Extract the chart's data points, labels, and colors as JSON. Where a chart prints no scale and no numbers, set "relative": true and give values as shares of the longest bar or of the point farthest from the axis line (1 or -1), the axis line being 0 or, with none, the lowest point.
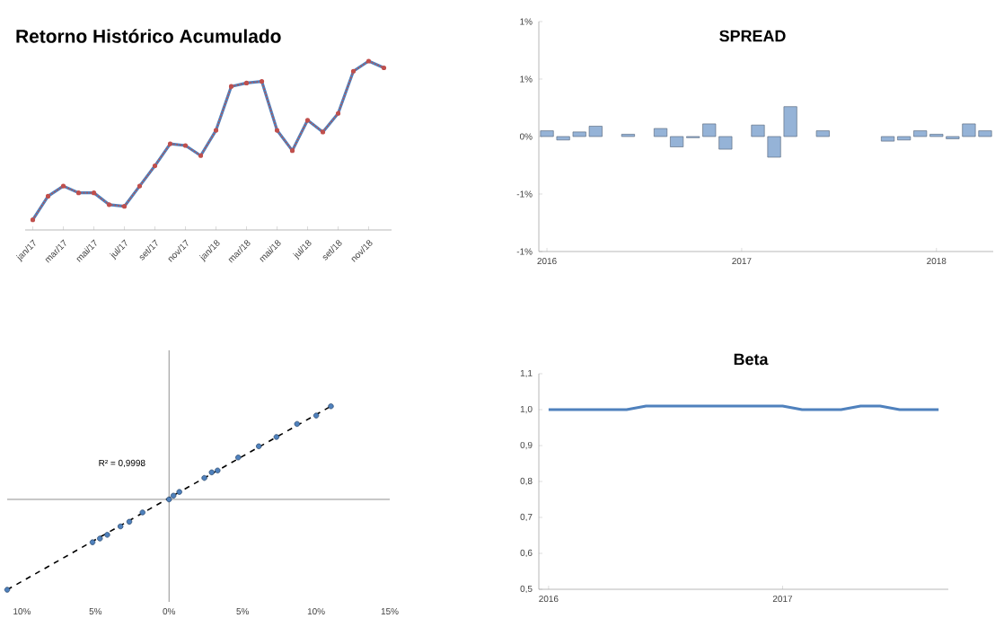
{
  "chart_data": [
    {
      "type": "line",
      "title": "Retorno Histórico Acumulado",
      "relative": true,
      "categories": [
        "jan/17",
        null,
        "mar/17",
        null,
        "mai/17",
        null,
        "jul/17",
        null,
        "set/17",
        null,
        "nov/17",
        null,
        "jan/18",
        null,
        "mar/18",
        null,
        "mai/18",
        null,
        "jul/18",
        null,
        "set/18",
        null,
        "nov/18",
        null
      ],
      "series": [
        {
          "color": "#4f81bd",
          "line_style": "solid",
          "marker": "none",
          "values": [
            0.06,
            0.2,
            0.26,
            0.22,
            0.22,
            0.15,
            0.14,
            0.26,
            0.38,
            0.51,
            0.5,
            0.44,
            0.59,
            0.85,
            0.87,
            0.88,
            0.59,
            0.47,
            0.65,
            0.58,
            0.69,
            0.94,
            1,
            0.96
          ]
        },
        {
          "color": "#c0504d",
          "line_style": "dotted",
          "marker": "circle",
          "values": [
            0.06,
            0.2,
            0.26,
            0.22,
            0.22,
            0.15,
            0.14,
            0.26,
            0.38,
            0.51,
            0.5,
            0.44,
            0.59,
            0.85,
            0.87,
            0.88,
            0.59,
            0.47,
            0.65,
            0.58,
            0.69,
            0.94,
            1,
            0.96
          ]
        }
      ]
    },
    {
      "type": "bar",
      "title": "SPREAD",
      "color": "#95b3d7",
      "categories": [
        "2016",
        null,
        null,
        null,
        null,
        null,
        null,
        null,
        null,
        null,
        null,
        null,
        "2017",
        null,
        null,
        null,
        null,
        null,
        null,
        null,
        null,
        null,
        null,
        null,
        "2018",
        null,
        null,
        null
      ],
      "values": [
        0.05,
        -0.03,
        0.04,
        0.09,
        null,
        0.02,
        null,
        0.07,
        -0.09,
        -0.01,
        0.11,
        -0.11,
        null,
        0.1,
        -0.18,
        0.26,
        null,
        0.05,
        null,
        null,
        null,
        -0.04,
        -0.03,
        0.05,
        0.02,
        -0.02,
        0.11,
        0.05
      ],
      "ylim": [
        -1,
        1
      ],
      "yticks": [
        {
          "value": -1,
          "label": "-1%"
        },
        {
          "value": -0.5,
          "label": "-1%"
        },
        {
          "value": 0,
          "label": "0%"
        },
        {
          "value": 0.5,
          "label": "1%"
        },
        {
          "value": 1,
          "label": "1%"
        }
      ]
    },
    {
      "type": "scatter",
      "relative": true,
      "tick_labels": "x",
      "annotations": [
        "R² = 0,9998"
      ],
      "xlim": [
        -11,
        15
      ],
      "xticks": [
        {
          "value": -10,
          "label": "10%"
        },
        {
          "value": -5,
          "label": "5%"
        },
        {
          "value": 0,
          "label": "0%"
        },
        {
          "value": 5,
          "label": "5%"
        },
        {
          "value": 10,
          "label": "10%"
        },
        {
          "value": 15,
          "label": "15%"
        }
      ],
      "series": [
        {
          "type": "scatter",
          "color": "#4f81bd",
          "marker": "circle",
          "x": [
            -11,
            -5.2,
            -4.7,
            -4.2,
            -3.3,
            -2.7,
            -1.8,
            0,
            0.3,
            0.7,
            2.4,
            2.9,
            3.3,
            4.7,
            6.1,
            7.3,
            8.7,
            10,
            11
          ],
          "values": [
            -0.97,
            -0.46,
            -0.42,
            -0.38,
            -0.29,
            -0.24,
            -0.14,
            0,
            0.04,
            0.08,
            0.23,
            0.29,
            0.31,
            0.45,
            0.57,
            0.67,
            0.81,
            0.9,
            1
          ]
        },
        {
          "type": "line",
          "color": "#000000",
          "line_style": "dashed",
          "x": [
            -11,
            11
          ],
          "values": [
            -0.97,
            1
          ]
        }
      ]
    },
    {
      "type": "line",
      "title": "Beta",
      "color": "#4f81bd",
      "categories": [
        "2016",
        null,
        null,
        null,
        null,
        null,
        null,
        null,
        null,
        null,
        null,
        null,
        "2017",
        null,
        null,
        null,
        null,
        null,
        null,
        null,
        null
      ],
      "values": [
        1,
        1,
        1,
        1,
        1,
        1.01,
        1.01,
        1.01,
        1.01,
        1.01,
        1.01,
        1.01,
        1.01,
        1,
        1,
        1,
        1.01,
        1.01,
        1,
        1,
        1
      ],
      "ylim": [
        0.5,
        1.1
      ],
      "yticks": [
        {
          "value": 0.5,
          "label": "0,5"
        },
        {
          "value": 0.6,
          "label": "0,6"
        },
        {
          "value": 0.7,
          "label": "0,7"
        },
        {
          "value": 0.8,
          "label": "0,8"
        },
        {
          "value": 0.9,
          "label": "0,9"
        },
        {
          "value": 1,
          "label": "1,0"
        },
        {
          "value": 1.1,
          "label": "1,1"
        }
      ]
    }
  ]
}
